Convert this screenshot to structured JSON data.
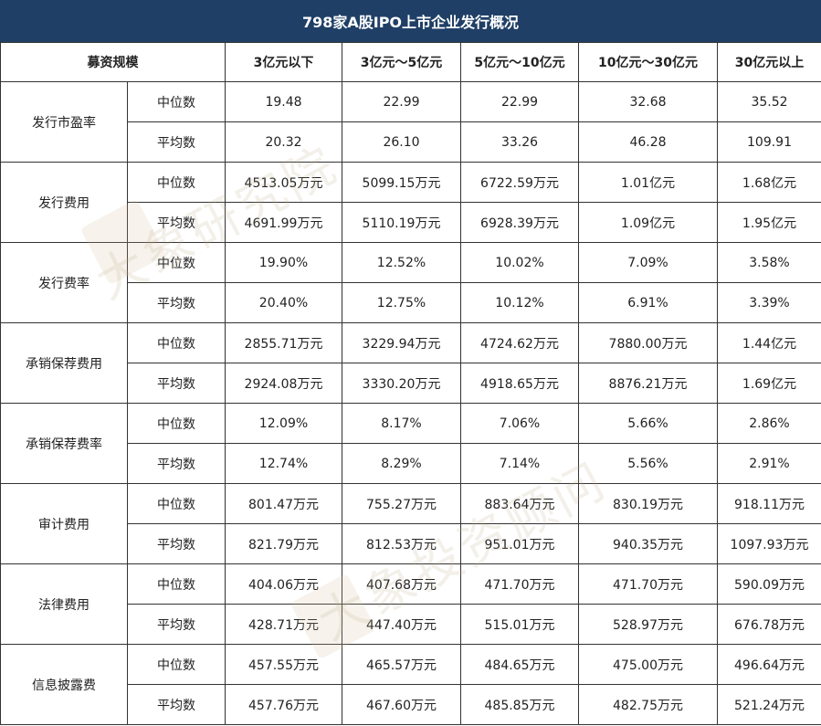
{
  "title": "798家A股IPO上市企业发行概况",
  "header": {
    "first": "募资规模",
    "columns": [
      "3亿元以下",
      "3亿元～5亿元",
      "5亿元～10亿元",
      "10亿元～30亿元",
      "30亿元以上"
    ]
  },
  "watermarks": [
    "大象研究院",
    "大象投资顾问"
  ],
  "groups": [
    {
      "name": "发行市盈率",
      "rows": [
        {
          "label": "中位数",
          "values": [
            "19.48",
            "22.99",
            "22.99",
            "32.68",
            "35.52"
          ]
        },
        {
          "label": "平均数",
          "values": [
            "20.32",
            "26.10",
            "33.26",
            "46.28",
            "109.91"
          ]
        }
      ]
    },
    {
      "name": "发行费用",
      "rows": [
        {
          "label": "中位数",
          "values": [
            "4513.05万元",
            "5099.15万元",
            "6722.59万元",
            "1.01亿元",
            "1.68亿元"
          ]
        },
        {
          "label": "平均数",
          "values": [
            "4691.99万元",
            "5110.19万元",
            "6928.39万元",
            "1.09亿元",
            "1.95亿元"
          ]
        }
      ]
    },
    {
      "name": "发行费率",
      "rows": [
        {
          "label": "中位数",
          "values": [
            "19.90%",
            "12.52%",
            "10.02%",
            "7.09%",
            "3.58%"
          ]
        },
        {
          "label": "平均数",
          "values": [
            "20.40%",
            "12.75%",
            "10.12%",
            "6.91%",
            "3.39%"
          ]
        }
      ]
    },
    {
      "name": "承销保荐费用",
      "rows": [
        {
          "label": "中位数",
          "values": [
            "2855.71万元",
            "3229.94万元",
            "4724.62万元",
            "7880.00万元",
            "1.44亿元"
          ]
        },
        {
          "label": "平均数",
          "values": [
            "2924.08万元",
            "3330.20万元",
            "4918.65万元",
            "8876.21万元",
            "1.69亿元"
          ]
        }
      ]
    },
    {
      "name": "承销保荐费率",
      "rows": [
        {
          "label": "中位数",
          "values": [
            "12.09%",
            "8.17%",
            "7.06%",
            "5.66%",
            "2.86%"
          ]
        },
        {
          "label": "平均数",
          "values": [
            "12.74%",
            "8.29%",
            "7.14%",
            "5.56%",
            "2.91%"
          ]
        }
      ]
    },
    {
      "name": "审计费用",
      "rows": [
        {
          "label": "中位数",
          "values": [
            "801.47万元",
            "755.27万元",
            "883.64万元",
            "830.19万元",
            "918.11万元"
          ]
        },
        {
          "label": "平均数",
          "values": [
            "821.79万元",
            "812.53万元",
            "951.01万元",
            "940.35万元",
            "1097.93万元"
          ]
        }
      ]
    },
    {
      "name": "法律费用",
      "rows": [
        {
          "label": "中位数",
          "values": [
            "404.06万元",
            "407.68万元",
            "471.70万元",
            "471.70万元",
            "590.09万元"
          ]
        },
        {
          "label": "平均数",
          "values": [
            "428.71万元",
            "447.40万元",
            "515.01万元",
            "528.97万元",
            "676.78万元"
          ]
        }
      ]
    },
    {
      "name": "信息披露费",
      "rows": [
        {
          "label": "中位数",
          "values": [
            "457.55万元",
            "465.57万元",
            "484.65万元",
            "475.00万元",
            "496.64万元"
          ]
        },
        {
          "label": "平均数",
          "values": [
            "457.76万元",
            "467.60万元",
            "485.85万元",
            "482.75万元",
            "521.24万元"
          ]
        }
      ]
    }
  ]
}
